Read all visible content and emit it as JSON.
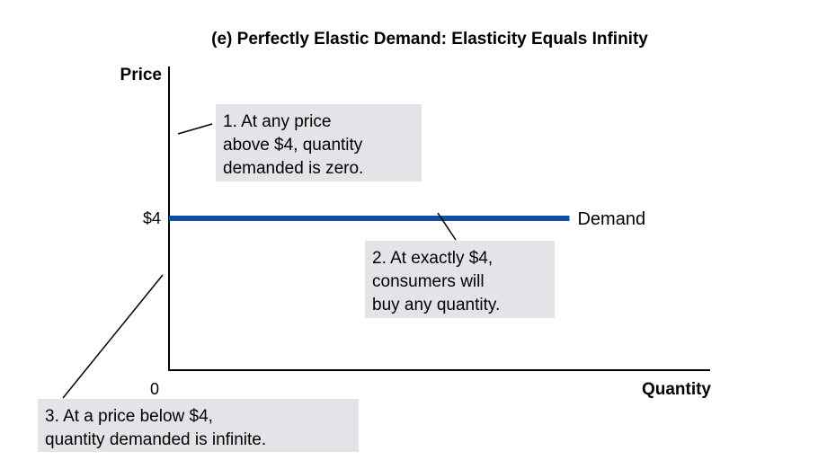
{
  "chart_data": {
    "type": "line",
    "title": "(e) Perfectly Elastic Demand: Elasticity Equals Infinity",
    "xlabel": "Quantity",
    "ylabel": "Price",
    "x_origin_label": "0",
    "y_ticks": [
      {
        "value": 4,
        "label": "$4"
      }
    ],
    "ylim": [
      0,
      8
    ],
    "xlim": [
      0,
      10
    ],
    "grid": false,
    "series": [
      {
        "name": "Demand",
        "color": "#0b4ea2",
        "points": [
          {
            "x": 0,
            "y": 4
          },
          {
            "x": 7.4,
            "y": 4
          }
        ]
      }
    ],
    "annotations": [
      {
        "id": "note1",
        "lines": [
          "1. At any price",
          "above $4, quantity",
          "demanded is zero."
        ]
      },
      {
        "id": "note2",
        "lines": [
          "2. At exactly $4,",
          "consumers will",
          "buy any quantity."
        ]
      },
      {
        "id": "note3",
        "lines": [
          "3. At a price below $4,",
          "quantity demanded is infinite."
        ]
      }
    ]
  },
  "colors": {
    "demand_line": "#0b4ea2",
    "note_background": "#e2e4e7",
    "axis": "#000000"
  }
}
